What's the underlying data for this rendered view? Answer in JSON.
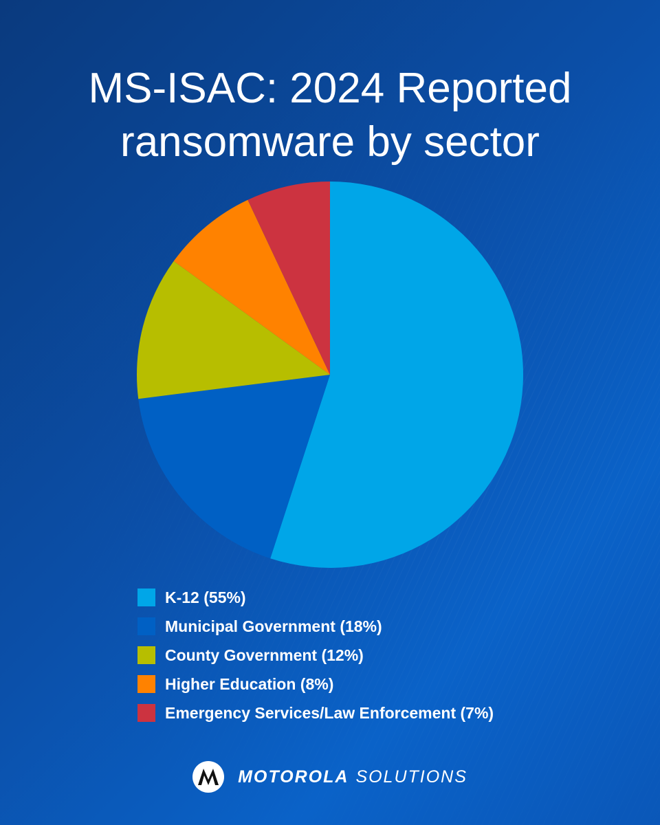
{
  "title": {
    "line1": "MS-ISAC: 2024 Reported",
    "line2": "ransomware by sector"
  },
  "chart_data": {
    "type": "pie",
    "title": "MS-ISAC: 2024 Reported ransomware by sector",
    "legend_position": "bottom",
    "slices": [
      {
        "label": "K-12 (55%)",
        "value": 55,
        "color": "#00a6e8"
      },
      {
        "label": "Municipal Government (18%)",
        "value": 18,
        "color": "#0060c4"
      },
      {
        "label": "County Government (12%)",
        "value": 12,
        "color": "#b7be00"
      },
      {
        "label": "Higher Education (8%)",
        "value": 8,
        "color": "#ff8200"
      },
      {
        "label": "Emergency Services/Law Enforcement (7%)",
        "value": 7,
        "color": "#cc3340"
      }
    ]
  },
  "brand": {
    "logo_icon": "motorola-batwing-icon",
    "name_bold": "MOTOROLA",
    "name_light": "SOLUTIONS"
  }
}
